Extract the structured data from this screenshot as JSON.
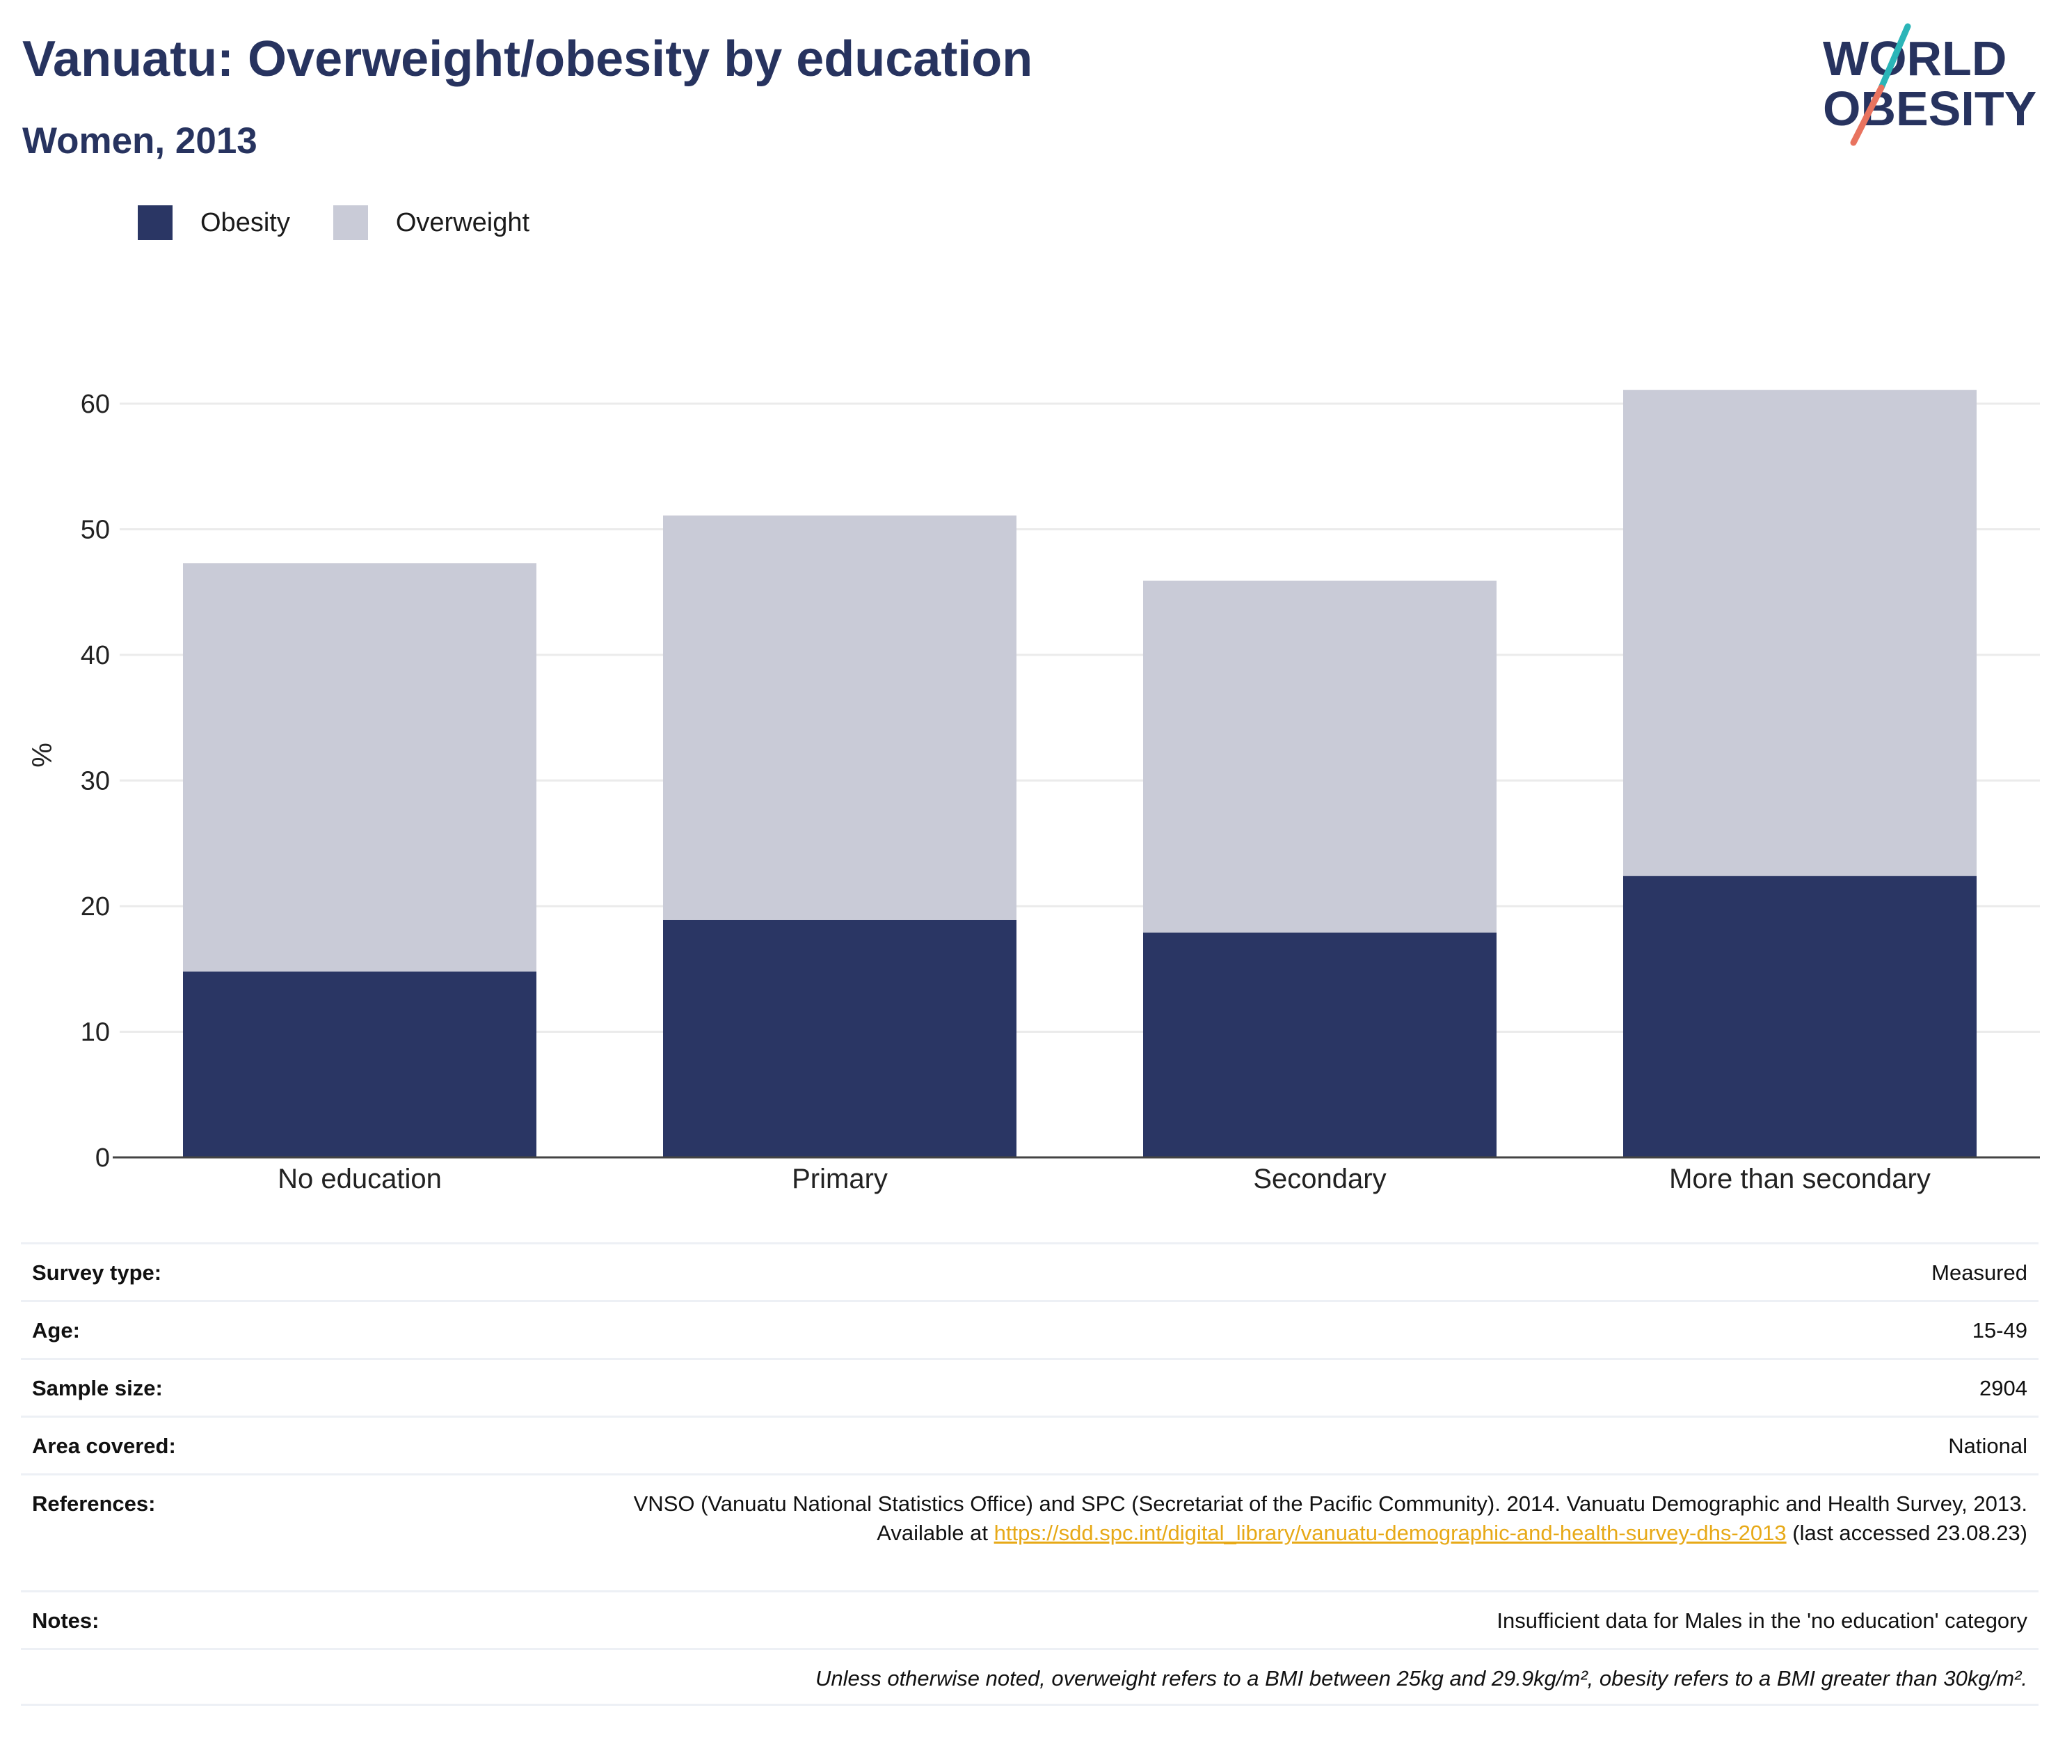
{
  "header": {
    "title": "Vanuatu: Overweight/obesity by education",
    "subtitle": "Women, 2013"
  },
  "logo": {
    "line1": "WORLD",
    "line2": "OBESITY",
    "accent_teal": "#2bb5b8",
    "accent_coral": "#e8735f",
    "text_color": "#27335f"
  },
  "colors": {
    "obesity": "#2a3664",
    "overweight": "#c9cbd7",
    "gridline": "#ebebeb",
    "axis": "#444444",
    "link": "#e7a917"
  },
  "legend": {
    "items": [
      {
        "label": "Obesity",
        "color": "#2a3664"
      },
      {
        "label": "Overweight",
        "color": "#c9cbd7"
      }
    ]
  },
  "chart_data": {
    "type": "bar",
    "stacked": true,
    "categories": [
      "No education",
      "Primary",
      "Secondary",
      "More than secondary"
    ],
    "series": [
      {
        "name": "Obesity",
        "values": [
          14.8,
          18.9,
          17.9,
          22.4
        ]
      },
      {
        "name": "Overweight",
        "values": [
          32.5,
          32.2,
          28.0,
          38.7
        ]
      }
    ],
    "ylabel": "%",
    "ylim": [
      0,
      65
    ],
    "yticks": [
      0,
      10,
      20,
      30,
      40,
      50,
      60
    ],
    "grid": true,
    "legend_position": "top-left"
  },
  "info": {
    "rows": [
      {
        "label": "Survey type:",
        "value": "Measured"
      },
      {
        "label": "Age:",
        "value": "15-49"
      },
      {
        "label": "Sample size:",
        "value": "2904"
      },
      {
        "label": "Area covered:",
        "value": "National"
      },
      {
        "label": "References:",
        "ref_text_1": "VNSO (Vanuatu National Statistics Office) and SPC (Secretariat of the Pacific Community). 2014. Vanuatu Demographic and Health Survey, 2013. Available at",
        "ref_link": "https://sdd.spc.int/digital_library/vanuatu-demographic-and-health-survey-dhs-2013",
        "ref_text_2": "(last accessed 23.08.23)"
      },
      {
        "label": "Notes:",
        "value": "Insufficient data for Males in the 'no education' category"
      }
    ],
    "footnote": "Unless otherwise noted, overweight refers to a BMI between 25kg and 29.9kg/m², obesity refers to a BMI greater than 30kg/m²."
  }
}
